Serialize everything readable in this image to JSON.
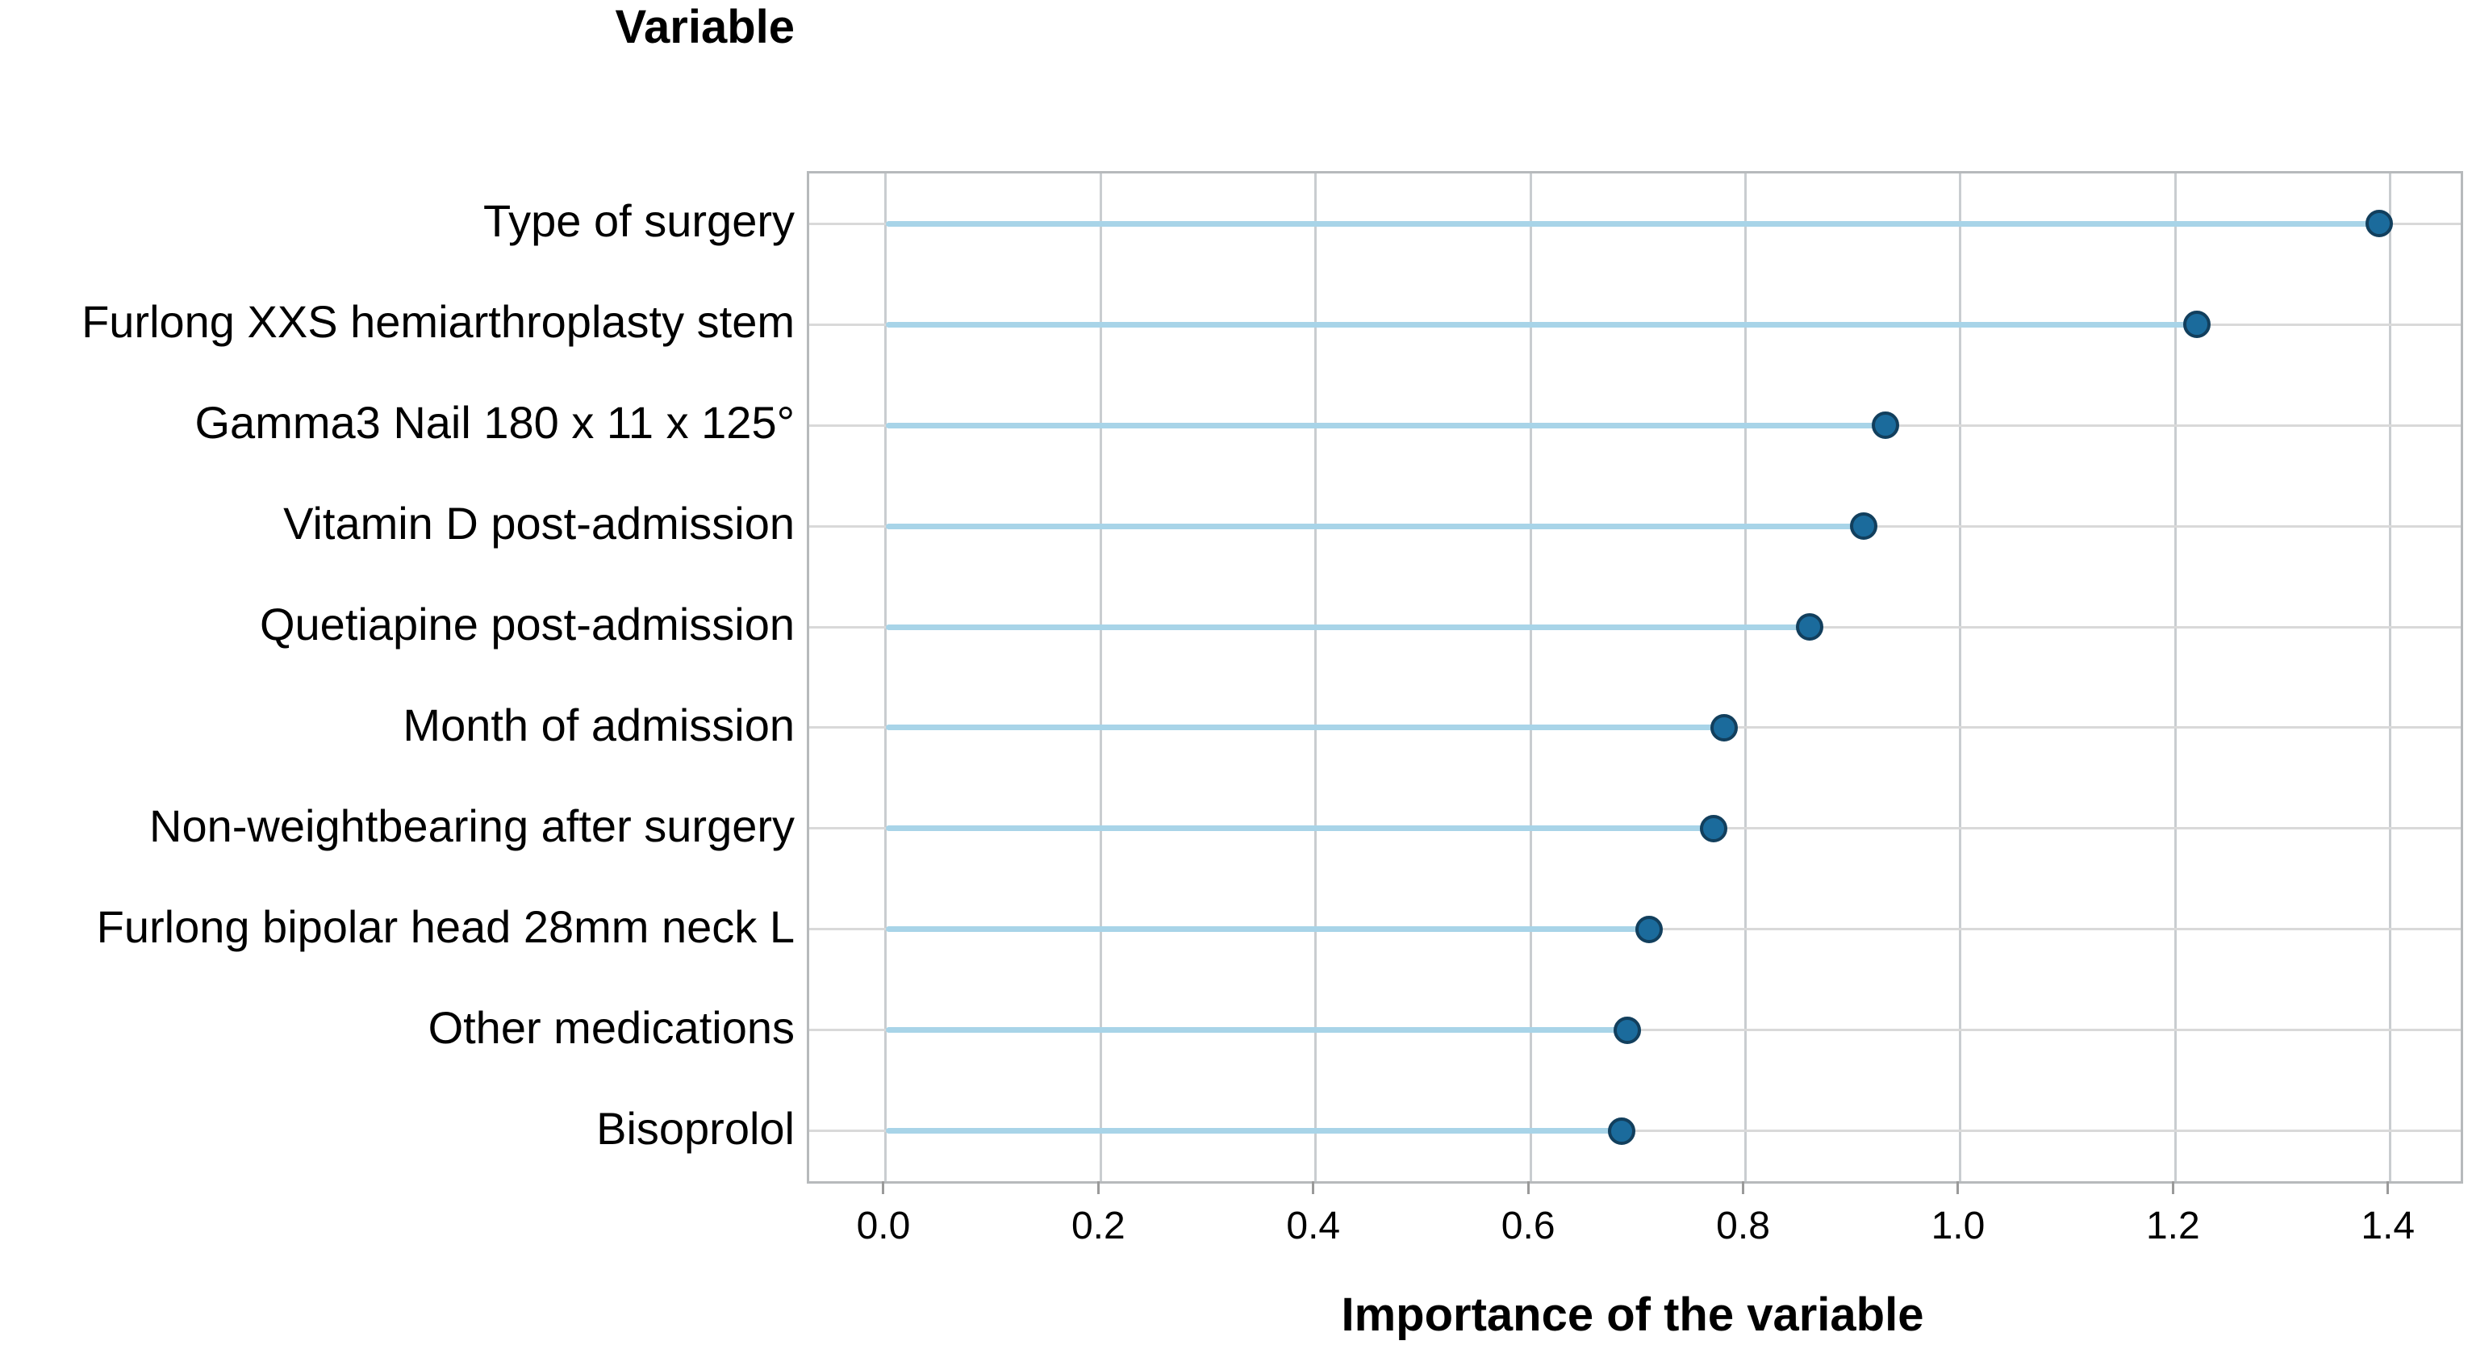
{
  "chart_data": {
    "type": "bar",
    "style": "lollipop-horizontal",
    "title": "",
    "ylabel": "Variable",
    "xlabel": "Importance of the variable",
    "categories": [
      "Type of surgery",
      "Furlong XXS hemiarthroplasty stem",
      "Gamma3 Nail 180 x 11 x 125°",
      "Vitamin D post-admission",
      "Quetiapine post-admission",
      "Month of admission",
      "Non-weightbearing after surgery",
      "Furlong bipolar head 28mm neck L",
      "Other medications",
      "Bisoprolol"
    ],
    "values": [
      1.39,
      1.22,
      0.93,
      0.91,
      0.86,
      0.78,
      0.77,
      0.71,
      0.69,
      0.685
    ],
    "xticks": [
      0.0,
      0.2,
      0.4,
      0.6,
      0.8,
      1.0,
      1.2,
      1.4
    ],
    "xlim": [
      -0.0713,
      1.4655
    ],
    "grid": true,
    "legend": "none",
    "stems_start_at": 0.0,
    "colors": {
      "dot_fill": "#1b6b9c",
      "dot_border": "#123f5d",
      "stem": "#a8d4e8",
      "grid_horizontal": "#d9d9d9",
      "grid_vertical": "#c9cdd0",
      "panel_border": "#b7babc",
      "text": "#000000",
      "background": "#ffffff"
    }
  }
}
